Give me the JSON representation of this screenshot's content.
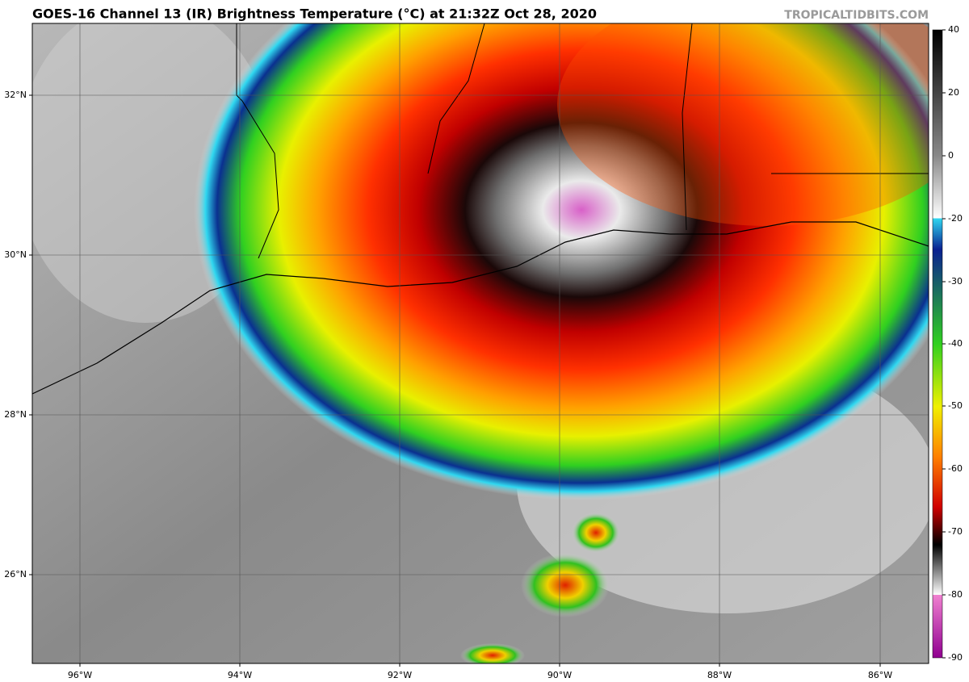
{
  "header": {
    "title": "GOES-16 Channel 13 (IR) Brightness Temperature (°C) at 21:32Z Oct 28, 2020",
    "credit": "TROPICALTIDBITS.COM"
  },
  "map": {
    "longitude_labels": [
      "96°W",
      "94°W",
      "92°W",
      "90°W",
      "88°W",
      "86°W"
    ],
    "latitude_labels": [
      "32°N",
      "30°N",
      "28°N",
      "26°N"
    ]
  },
  "colorbar": {
    "ticks": [
      "40",
      "20",
      "0",
      "-20",
      "-30",
      "-40",
      "-50",
      "-60",
      "-70",
      "-80",
      "-90"
    ]
  }
}
